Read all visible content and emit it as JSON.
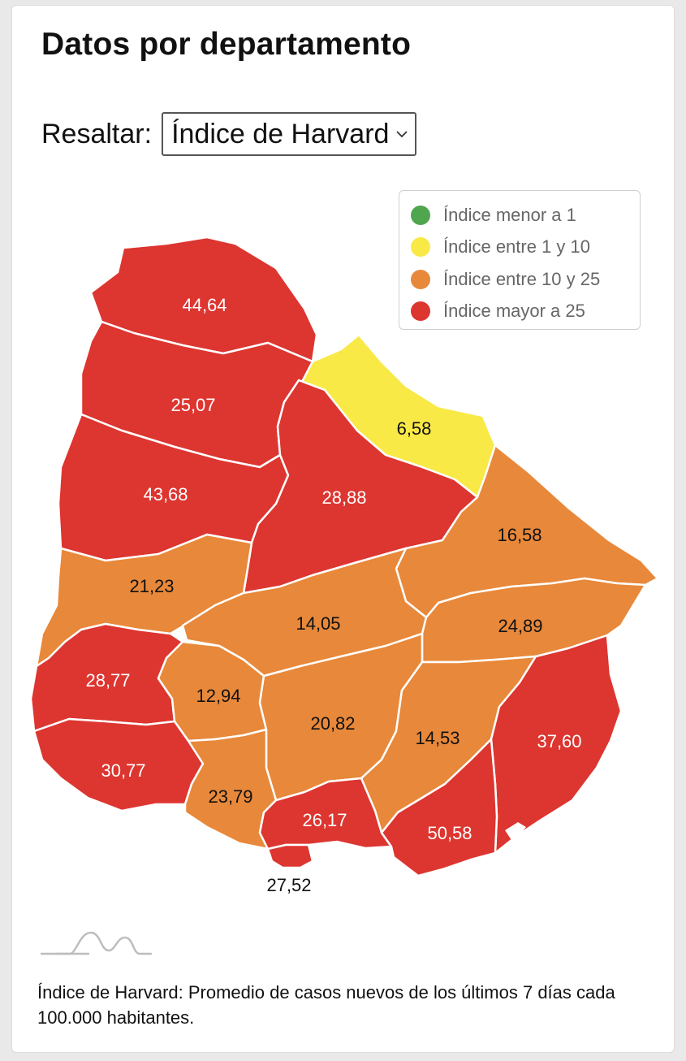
{
  "title": "Datos por departamento",
  "highlight": {
    "label": "Resaltar:",
    "selected": "Índice de Harvard"
  },
  "legend": [
    {
      "label": "Índice menor a 1",
      "color": "#4fa64f"
    },
    {
      "label": "Índice entre 1 y 10",
      "color": "#f9e946"
    },
    {
      "label": "Índice entre 10 y 25",
      "color": "#e8883a"
    },
    {
      "label": "Índice mayor a 25",
      "color": "#dd3530"
    }
  ],
  "departments": [
    {
      "value": "44,64",
      "class": "mayor"
    },
    {
      "value": "25,07",
      "class": "mayor"
    },
    {
      "value": "6,58",
      "class": "entre1y10"
    },
    {
      "value": "43,68",
      "class": "mayor"
    },
    {
      "value": "28,88",
      "class": "mayor"
    },
    {
      "value": "16,58",
      "class": "entre10y25"
    },
    {
      "value": "21,23",
      "class": "entre10y25"
    },
    {
      "value": "14,05",
      "class": "entre10y25"
    },
    {
      "value": "24,89",
      "class": "entre10y25"
    },
    {
      "value": "28,77",
      "class": "mayor"
    },
    {
      "value": "12,94",
      "class": "entre10y25"
    },
    {
      "value": "20,82",
      "class": "entre10y25"
    },
    {
      "value": "14,53",
      "class": "entre10y25"
    },
    {
      "value": "37,60",
      "class": "mayor"
    },
    {
      "value": "30,77",
      "class": "mayor"
    },
    {
      "value": "23,79",
      "class": "entre10y25"
    },
    {
      "value": "26,17",
      "class": "mayor"
    },
    {
      "value": "50,58",
      "class": "mayor"
    },
    {
      "value": "27,52",
      "class": "mayor"
    }
  ],
  "classColors": {
    "menor": "#4fa64f",
    "entre1y10": "#f9e946",
    "entre10y25": "#e8883a",
    "mayor": "#dd3530"
  },
  "footnote": "Índice de Harvard: Promedio de casos nuevos de los últimos 7 días cada 100.000 habitantes."
}
